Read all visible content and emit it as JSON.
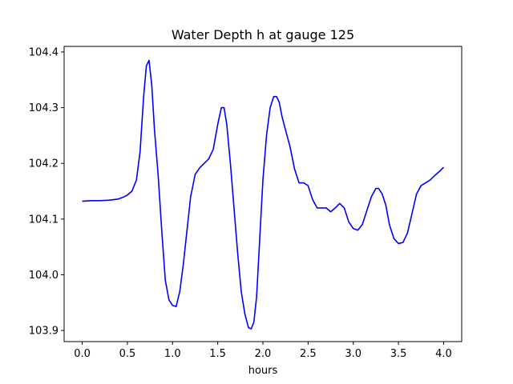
{
  "chart_data": {
    "type": "line",
    "title": "Water Depth h at gauge 125",
    "xlabel": "hours",
    "ylabel": "",
    "xlim": [
      -0.2,
      4.2
    ],
    "ylim": [
      103.88,
      104.41
    ],
    "xticks": [
      0.0,
      0.5,
      1.0,
      1.5,
      2.0,
      2.5,
      3.0,
      3.5,
      4.0
    ],
    "xtick_labels": [
      "0.0",
      "0.5",
      "1.0",
      "1.5",
      "2.0",
      "2.5",
      "3.0",
      "3.5",
      "4.0"
    ],
    "yticks": [
      103.9,
      104.0,
      104.1,
      104.2,
      104.3,
      104.4
    ],
    "ytick_labels": [
      "103.9",
      "104.0",
      "104.1",
      "104.2",
      "104.3",
      "104.4"
    ],
    "grid": false,
    "series": [
      {
        "color": "#0000ff",
        "x": [
          0.0,
          0.1,
          0.2,
          0.3,
          0.4,
          0.45,
          0.5,
          0.55,
          0.6,
          0.64,
          0.68,
          0.71,
          0.74,
          0.77,
          0.8,
          0.84,
          0.88,
          0.92,
          0.96,
          1.0,
          1.04,
          1.08,
          1.12,
          1.16,
          1.2,
          1.25,
          1.3,
          1.35,
          1.4,
          1.45,
          1.5,
          1.54,
          1.57,
          1.6,
          1.64,
          1.68,
          1.72,
          1.76,
          1.8,
          1.84,
          1.87,
          1.9,
          1.93,
          1.96,
          2.0,
          2.04,
          2.08,
          2.12,
          2.15,
          2.18,
          2.21,
          2.25,
          2.3,
          2.35,
          2.4,
          2.45,
          2.5,
          2.55,
          2.6,
          2.65,
          2.7,
          2.75,
          2.8,
          2.85,
          2.9,
          2.95,
          3.0,
          3.05,
          3.1,
          3.15,
          3.2,
          3.25,
          3.28,
          3.32,
          3.36,
          3.4,
          3.45,
          3.5,
          3.55,
          3.6,
          3.65,
          3.7,
          3.75,
          3.8,
          3.85,
          3.9,
          3.95,
          4.0
        ],
        "y": [
          104.132,
          104.133,
          104.133,
          104.134,
          104.136,
          104.139,
          104.143,
          104.15,
          104.17,
          104.22,
          104.32,
          104.375,
          104.385,
          104.34,
          104.26,
          104.18,
          104.08,
          103.99,
          103.955,
          103.945,
          103.943,
          103.97,
          104.02,
          104.08,
          104.14,
          104.18,
          104.192,
          104.2,
          104.208,
          104.225,
          104.27,
          104.3,
          104.3,
          104.27,
          104.2,
          104.12,
          104.04,
          103.97,
          103.93,
          103.905,
          103.903,
          103.915,
          103.96,
          104.05,
          104.17,
          104.25,
          104.3,
          104.32,
          104.32,
          104.31,
          104.285,
          104.26,
          104.23,
          104.19,
          104.165,
          104.165,
          104.16,
          104.135,
          104.12,
          104.12,
          104.12,
          104.113,
          104.12,
          104.128,
          104.12,
          104.095,
          104.083,
          104.08,
          104.09,
          104.115,
          104.14,
          104.155,
          104.155,
          104.145,
          104.125,
          104.09,
          104.065,
          104.056,
          104.058,
          104.075,
          104.11,
          104.145,
          104.16,
          104.165,
          104.17,
          104.178,
          104.185,
          104.193
        ]
      }
    ]
  }
}
